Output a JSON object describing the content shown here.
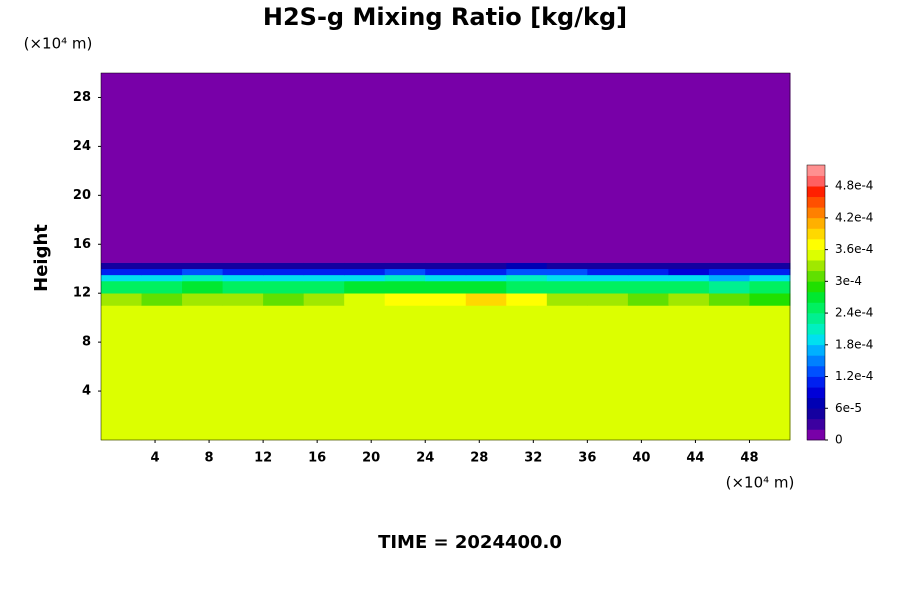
{
  "chart_data": {
    "type": "contour",
    "title": "H2S-g Mixing Ratio [kg/kg]",
    "ylabel": "Height",
    "y_unit": "(×10⁴ m)",
    "x_unit": "(×10⁴ m)",
    "footer": "TIME = 2024400.0",
    "xlim": [
      0,
      51
    ],
    "ylim": [
      0,
      30
    ],
    "xticks": [
      4,
      8,
      12,
      16,
      20,
      24,
      28,
      32,
      36,
      40,
      44,
      48
    ],
    "yticks": [
      4,
      8,
      12,
      16,
      20,
      24,
      28
    ],
    "x_edges": [
      0,
      3,
      6,
      9,
      12,
      15,
      18,
      21,
      24,
      27,
      30,
      33,
      36,
      39,
      42,
      45,
      48,
      51
    ],
    "y_edges": [
      0,
      11,
      12,
      13,
      13.5,
      14,
      14.5,
      30
    ],
    "z": [
      [
        0.00035,
        0.00035,
        0.00035,
        0.00035,
        0.00035,
        0.00035,
        0.00035,
        0.00035,
        0.00035,
        0.00035,
        0.00035,
        0.00035,
        0.00035,
        0.00035,
        0.00035,
        0.00035,
        0.00035
      ],
      [
        0.00032,
        0.00031,
        0.00033,
        0.00032,
        0.00031,
        0.00033,
        0.00034,
        0.00037,
        0.00037,
        0.00038,
        0.00036,
        0.00033,
        0.00032,
        0.00031,
        0.00032,
        0.00031,
        0.0003
      ],
      [
        0.00025,
        0.00024,
        0.00026,
        0.00025,
        0.00024,
        0.00025,
        0.00026,
        0.00027,
        0.00026,
        0.00027,
        0.00025,
        0.00024,
        0.00024,
        0.00025,
        0.00024,
        0.00023,
        0.00024
      ],
      [
        0.00019,
        0.00018,
        0.0002,
        0.00018,
        0.00019,
        0.00018,
        0.00019,
        0.0002,
        0.00019,
        0.00018,
        0.0002,
        0.00019,
        0.00018,
        0.00019,
        0.00018,
        0.00017,
        0.00018
      ],
      [
        0.00011,
        0.0001,
        0.00012,
        0.0001,
        0.00011,
        0.0001,
        0.00011,
        0.00012,
        0.00011,
        0.0001,
        0.00013,
        0.00012,
        0.00011,
        0.0001,
        9e-05,
        0.0001,
        0.00011
      ],
      [
        5e-05,
        4e-05,
        5e-05,
        4e-05,
        4e-05,
        5e-05,
        4e-05,
        5e-05,
        4e-05,
        4e-05,
        6e-05,
        5e-05,
        4e-05,
        5e-05,
        4e-05,
        4e-05,
        5e-05
      ],
      [
        0,
        0,
        0,
        0,
        0,
        0,
        0,
        0,
        0,
        0,
        0,
        0,
        0,
        0,
        0,
        0,
        0
      ]
    ],
    "clim": [
      0,
      0.00052
    ],
    "colors": [
      "#7800a8",
      "#3c00a0",
      "#1400a0",
      "#0000b4",
      "#0000d8",
      "#0020f0",
      "#0050ff",
      "#0080ff",
      "#00b0ff",
      "#00e0f0",
      "#00f0c0",
      "#00f090",
      "#00f060",
      "#00e830",
      "#20e000",
      "#60e000",
      "#a0e800",
      "#dcff00",
      "#ffff00",
      "#ffd800",
      "#ffb000",
      "#ff8000",
      "#ff5000",
      "#ff2000",
      "#ff6060",
      "#ff9090"
    ],
    "cticks": [
      0,
      {
        "value": 6e-05,
        "label": "6e-5"
      },
      {
        "value": 0.00012,
        "label": "1.2e-4"
      },
      {
        "value": 0.00018,
        "label": "1.8e-4"
      },
      {
        "value": 0.00024,
        "label": "2.4e-4"
      },
      {
        "value": 0.0003,
        "label": "3e-4"
      },
      {
        "value": 0.00036,
        "label": "3.6e-4"
      },
      {
        "value": 0.00042,
        "label": "4.2e-4"
      },
      {
        "value": 0.00048,
        "label": "4.8e-4"
      }
    ]
  }
}
